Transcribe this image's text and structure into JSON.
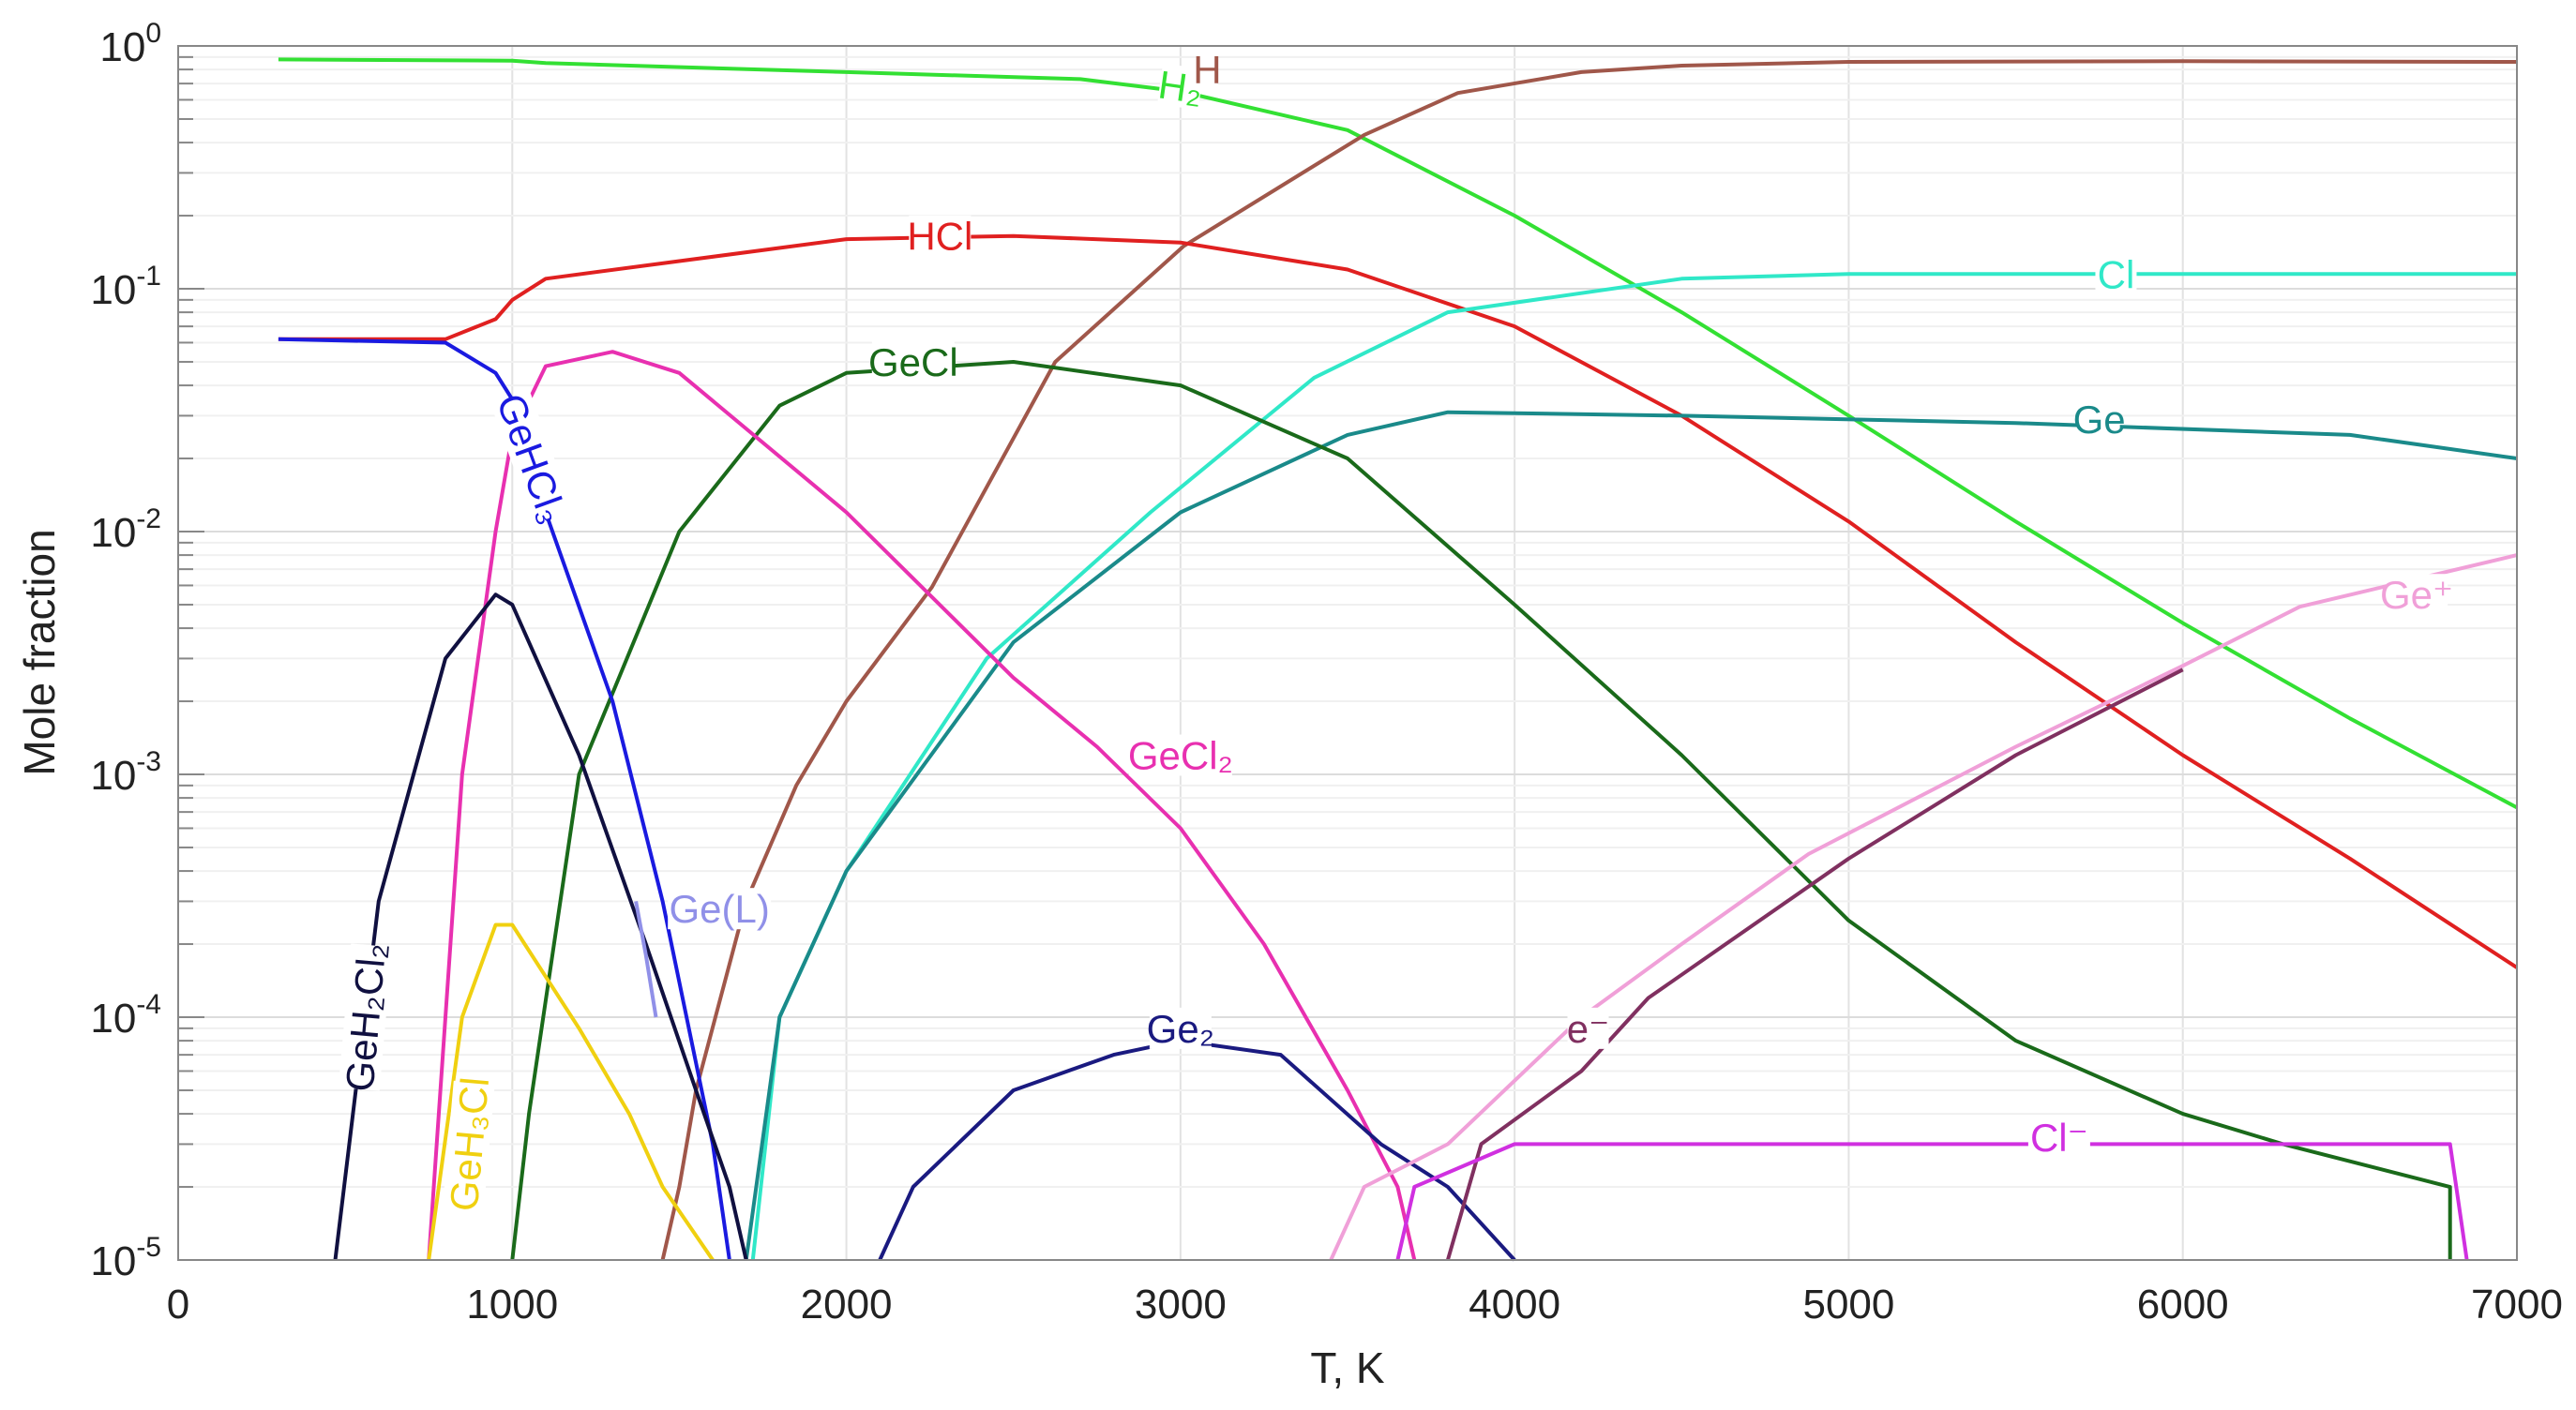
{
  "chart_data": {
    "type": "line",
    "title": "",
    "xlabel": "T, K",
    "ylabel": "Mole fraction",
    "xlim": [
      0,
      7000
    ],
    "ylim": [
      1e-05,
      1
    ],
    "yscale": "log",
    "grid": true,
    "legend": "inline labels",
    "xticks": [
      0,
      1000,
      2000,
      3000,
      4000,
      5000,
      6000,
      7000
    ],
    "xtick_labels": [
      "0",
      "1000",
      "2000",
      "3000",
      "4000",
      "5000",
      "6000",
      "7000"
    ],
    "yticks": [
      1,
      0.1,
      0.01,
      0.001,
      0.0001,
      1e-05
    ],
    "ytick_labels": [
      {
        "base": "10",
        "exp": "0"
      },
      {
        "base": "10",
        "exp": "-1"
      },
      {
        "base": "10",
        "exp": "-2"
      },
      {
        "base": "10",
        "exp": "-3"
      },
      {
        "base": "10",
        "exp": "-4"
      },
      {
        "base": "10",
        "exp": "-5"
      }
    ],
    "series": [
      {
        "name": "H₂",
        "color": "#33e033",
        "x": [
          300,
          1000,
          1100,
          2000,
          2700,
          3000,
          3500,
          4000,
          4500,
          5000,
          5500,
          6000,
          6500,
          7000
        ],
        "y": [
          0.88,
          0.87,
          0.85,
          0.78,
          0.73,
          0.65,
          0.45,
          0.2,
          0.08,
          0.03,
          0.011,
          0.0042,
          0.0017,
          0.00073
        ]
      },
      {
        "name": "H",
        "color": "#a0574a",
        "x": [
          1450,
          1500,
          1550,
          1608,
          1700,
          1850,
          2000,
          2256,
          2625,
          3010,
          3550,
          3830,
          4200,
          4500,
          5000,
          6000,
          7000
        ],
        "y": [
          1e-05,
          2e-05,
          5e-05,
          0.0001,
          0.0003,
          0.0009,
          0.002,
          0.0059,
          0.05,
          0.15,
          0.43,
          0.64,
          0.78,
          0.83,
          0.86,
          0.865,
          0.86
        ]
      },
      {
        "name": "HCl",
        "color": "#e02020",
        "x": [
          300,
          800,
          950,
          1000,
          1100,
          1500,
          2000,
          2500,
          3000,
          3500,
          4000,
          4500,
          5000,
          5500,
          6000,
          6500,
          7000
        ],
        "y": [
          0.062,
          0.062,
          0.075,
          0.09,
          0.11,
          0.13,
          0.16,
          0.165,
          0.155,
          0.12,
          0.07,
          0.03,
          0.011,
          0.0035,
          0.0012,
          0.00045,
          0.00016
        ]
      },
      {
        "name": "Cl",
        "color": "#30e8c8",
        "x": [
          1720,
          1800,
          2000,
          2420,
          2910,
          3400,
          3800,
          4500,
          5000,
          6000,
          7000
        ],
        "y": [
          1e-05,
          0.0001,
          0.0004,
          0.003,
          0.012,
          0.043,
          0.08,
          0.11,
          0.115,
          0.115,
          0.115
        ]
      },
      {
        "name": "Ge",
        "color": "#1a8a8a",
        "x": [
          1700,
          1800,
          2000,
          2500,
          3000,
          3500,
          3800,
          4500,
          5500,
          6500,
          7000
        ],
        "y": [
          1e-05,
          0.0001,
          0.0004,
          0.0035,
          0.012,
          0.025,
          0.031,
          0.03,
          0.028,
          0.025,
          0.02
        ]
      },
      {
        "name": "GeCl",
        "color": "#1a6a1a",
        "x": [
          1000,
          1050,
          1200,
          1500,
          1800,
          2000,
          2500,
          3000,
          3500,
          4000,
          4500,
          5000,
          5500,
          6000,
          6300,
          6800,
          6800
        ],
        "y": [
          1e-05,
          4e-05,
          0.001,
          0.01,
          0.033,
          0.045,
          0.05,
          0.04,
          0.02,
          0.005,
          0.0012,
          0.00025,
          8e-05,
          4e-05,
          3e-05,
          2e-05,
          1e-05
        ]
      },
      {
        "name": "GeCl₂",
        "color": "#e830b0",
        "x": [
          750,
          850,
          950,
          1000,
          1100,
          1300,
          1500,
          2000,
          2500,
          2750,
          3000,
          3250,
          3500,
          3650,
          3700
        ],
        "y": [
          1e-05,
          0.001,
          0.01,
          0.025,
          0.048,
          0.055,
          0.045,
          0.012,
          0.0025,
          0.0013,
          0.0006,
          0.0002,
          5e-05,
          2e-05,
          1e-05
        ]
      },
      {
        "name": "GeHCl₃",
        "color": "#1a1ae0",
        "x": [
          300,
          800,
          950,
          1000,
          1100,
          1300,
          1450,
          1600,
          1650
        ],
        "y": [
          0.062,
          0.06,
          0.045,
          0.035,
          0.012,
          0.002,
          0.0003,
          3e-05,
          1e-05
        ]
      },
      {
        "name": "GeH₂Cl₂",
        "color": "#101040",
        "x": [
          470,
          600,
          800,
          950,
          1000,
          1200,
          1400,
          1550,
          1650,
          1700
        ],
        "y": [
          1e-05,
          0.0003,
          0.003,
          0.0055,
          0.005,
          0.0012,
          0.0002,
          5e-05,
          2e-05,
          1e-05
        ]
      },
      {
        "name": "GeH₃Cl",
        "color": "#f0d010",
        "x": [
          750,
          850,
          950,
          1000,
          1200,
          1350,
          1450,
          1600
        ],
        "y": [
          1e-05,
          0.0001,
          0.00024,
          0.00024,
          9e-05,
          4e-05,
          2e-05,
          1e-05
        ]
      },
      {
        "name": "Ge(L)",
        "color": "#9090e8",
        "x": [
          1370,
          1400,
          1430
        ],
        "y": [
          0.0003,
          0.00018,
          0.0001
        ]
      },
      {
        "name": "Ge₂",
        "color": "#1a1a80",
        "x": [
          2100,
          2200,
          2500,
          2800,
          3000,
          3300,
          3600,
          3800,
          4000
        ],
        "y": [
          1e-05,
          2e-05,
          5e-05,
          7e-05,
          8e-05,
          7e-05,
          3e-05,
          2e-05,
          1e-05
        ]
      },
      {
        "name": "Ge⁺",
        "color": "#f0a0d8",
        "x": [
          3450,
          3550,
          3800,
          4200,
          4500,
          4880,
          5500,
          6000,
          6350,
          7000
        ],
        "y": [
          1e-05,
          2e-05,
          3e-05,
          0.0001,
          0.0002,
          0.00047,
          0.0013,
          0.0028,
          0.0049,
          0.008
        ]
      },
      {
        "name": "e⁻",
        "color": "#803060",
        "x": [
          3800,
          3900,
          4200,
          4400,
          5000,
          5500,
          6000
        ],
        "y": [
          1e-05,
          3e-05,
          6e-05,
          0.00012,
          0.00045,
          0.0012,
          0.0027
        ]
      },
      {
        "name": "Cl⁻",
        "color": "#d030e0",
        "x": [
          3650,
          3700,
          4000,
          5000,
          6000,
          6800,
          6850
        ],
        "y": [
          1e-05,
          2e-05,
          3e-05,
          3e-05,
          3e-05,
          3e-05,
          1e-05
        ]
      }
    ]
  }
}
